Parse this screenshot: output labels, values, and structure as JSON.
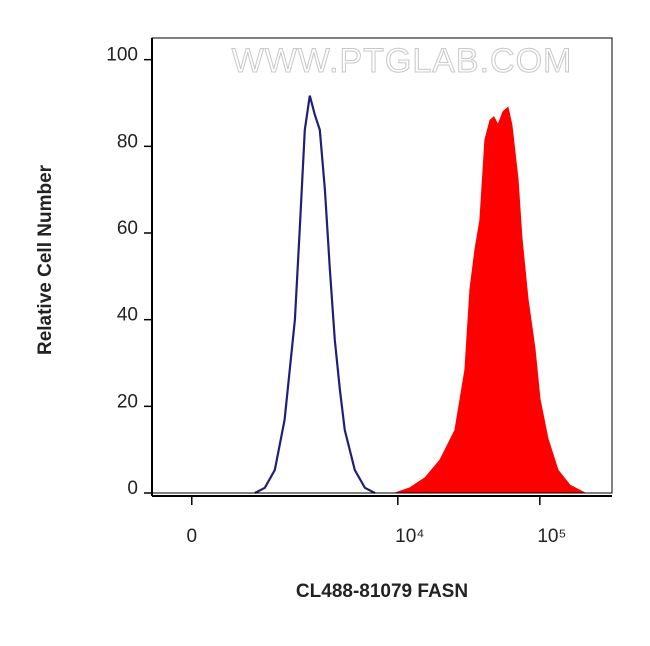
{
  "chart_data": {
    "type": "histogram-overlay",
    "watermark": "WWW.PTGLAB.COM",
    "xlabel": "CL488-81079 FASN",
    "ylabel": "Relative Cell Number",
    "xscale": "biexponential",
    "xlim": [
      -490,
      322000
    ],
    "xticks": [
      0,
      {
        "value": 10000,
        "label": "10⁴"
      },
      {
        "value": 100000,
        "label": "10⁵"
      }
    ],
    "ylim": [
      0,
      105
    ],
    "yticks": [
      0,
      20,
      40,
      60,
      80,
      100
    ],
    "series": [
      {
        "color": "#1f1f7a",
        "fill": false,
        "x": [
          860,
          1050,
          1270,
          1520,
          1820,
          1980,
          2160,
          2350,
          2560,
          2780,
          3030,
          3290,
          3570,
          3880,
          4210,
          4960,
          5850,
          6890
        ],
        "values": [
          0,
          1.2,
          5.3,
          16.9,
          40,
          60.7,
          83.8,
          91.7,
          87.3,
          83.8,
          70,
          51.5,
          35.3,
          23.8,
          14.5,
          5.3,
          1.2,
          0
        ]
      },
      {
        "color": "#ff0000",
        "fill": true,
        "x": [
          9550,
          12170,
          15530,
          19800,
          25250,
          29700,
          32200,
          34930,
          37880,
          41070,
          44550,
          47530,
          50730,
          55000,
          59640,
          63620,
          70150,
          74870,
          82470,
          92400,
          100200,
          114100,
          134200,
          163000,
          207900
        ],
        "values": [
          0,
          1.2,
          3.5,
          7.6,
          14.5,
          28.4,
          46.9,
          56.1,
          63,
          81.5,
          86,
          86.8,
          85,
          88,
          89,
          85,
          72.5,
          58.7,
          44.8,
          33.3,
          21.7,
          12.5,
          5.3,
          1.8,
          0
        ]
      }
    ]
  }
}
